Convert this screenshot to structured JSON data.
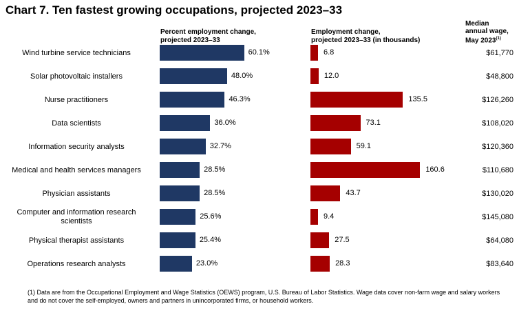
{
  "chart_data": {
    "type": "bar",
    "title": "Chart 7. Ten fastest growing occupations, projected 2023–33",
    "categories": [
      "Wind turbine service technicians",
      "Solar photovoltaic installers",
      "Nurse practitioners",
      "Data scientists",
      "Information security analysts",
      "Medical and health services managers",
      "Physician assistants",
      "Computer and information research scientists",
      "Physical therapist assistants",
      "Operations research analysts"
    ],
    "series": [
      {
        "name": "Percent employment change, projected 2023–33",
        "header_lines": [
          "Percent employment change,",
          "projected 2023–33"
        ],
        "values": [
          60.1,
          48.0,
          46.3,
          36.0,
          32.7,
          28.5,
          28.5,
          25.6,
          25.4,
          23.0
        ],
        "labels": [
          "60.1%",
          "48.0%",
          "46.3%",
          "36.0%",
          "32.7%",
          "28.5%",
          "28.5%",
          "25.6%",
          "25.4%",
          "23.0%"
        ],
        "color": "#1f3864",
        "xlim": [
          0,
          100
        ]
      },
      {
        "name": "Employment change, projected 2023–33 (in thousands)",
        "header_lines": [
          "Employment change,",
          "projected 2023–33 (in thousands)"
        ],
        "values": [
          6.8,
          12.0,
          135.5,
          73.1,
          59.1,
          160.6,
          43.7,
          9.4,
          27.5,
          28.3
        ],
        "labels": [
          "6.8",
          "12.0",
          "135.5",
          "73.1",
          "59.1",
          "160.6",
          "43.7",
          "9.4",
          "27.5",
          "28.3"
        ],
        "color": "#a50000",
        "xlim": [
          0,
          200
        ]
      }
    ],
    "wage_column": {
      "header_lines": [
        "Median",
        "annual wage,",
        "May 2023"
      ],
      "header_footnote": "(1)",
      "values": [
        "$61,770",
        "$48,800",
        "$126,260",
        "$108,020",
        "$120,360",
        "$110,680",
        "$130,020",
        "$145,080",
        "$64,080",
        "$83,640"
      ]
    }
  },
  "footnote": "(1) Data are from the Occupational Employment and Wage Statistics (OEWS) program, U.S. Bureau of Labor Statistics. Wage data cover non-farm wage and salary workers and do not cover the self-employed, owners and partners in unincorporated firms, or household workers."
}
